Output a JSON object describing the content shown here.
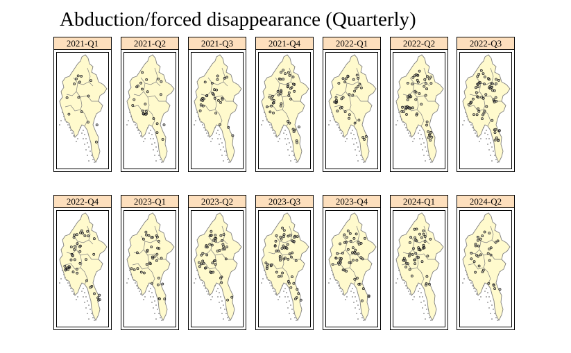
{
  "title": "Abduction/forced disappearance (Quarterly)",
  "colors": {
    "strip_fill": "#fddfbd",
    "land_fill": "#fffacd",
    "border_line": "#7f7f7f",
    "point_outline": "#000000",
    "point_fill": "#8c8c8c"
  },
  "panels": [
    {
      "label": "2021-Q1",
      "intensity": 0.15
    },
    {
      "label": "2021-Q2",
      "intensity": 0.35
    },
    {
      "label": "2021-Q3",
      "intensity": 0.4
    },
    {
      "label": "2021-Q4",
      "intensity": 0.7
    },
    {
      "label": "2022-Q1",
      "intensity": 0.55
    },
    {
      "label": "2022-Q2",
      "intensity": 0.85
    },
    {
      "label": "2022-Q3",
      "intensity": 1.0
    },
    {
      "label": "2022-Q4",
      "intensity": 0.7
    },
    {
      "label": "2023-Q1",
      "intensity": 0.55
    },
    {
      "label": "2023-Q2",
      "intensity": 0.75
    },
    {
      "label": "2023-Q3",
      "intensity": 0.9
    },
    {
      "label": "2023-Q4",
      "intensity": 0.8
    },
    {
      "label": "2024-Q1",
      "intensity": 0.75
    },
    {
      "label": "2024-Q2",
      "intensity": 0.45
    }
  ]
}
